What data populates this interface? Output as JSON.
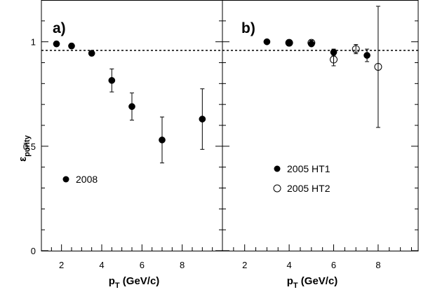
{
  "figure": {
    "y_axis_title": {
      "main": "ε",
      "sub": "purity"
    },
    "x_axis_title": {
      "main": "p",
      "sub": "T",
      "unit": " (GeV/c)"
    }
  },
  "chart_data": [
    {
      "type": "scatter",
      "panel_label": "a)",
      "x_ticks": [
        "2",
        "4",
        "6",
        "8"
      ],
      "y_ticks": [
        "0",
        "0.5",
        "1"
      ],
      "xlim": [
        1.0,
        10.0
      ],
      "ylim": [
        0,
        1.2
      ],
      "reference_line": 1.0,
      "legend_placement": "bottom-left",
      "series": [
        {
          "name": "2008",
          "marker": "filled-circle",
          "points": [
            {
              "x": 1.75,
              "y": 0.99,
              "err": 0.012
            },
            {
              "x": 2.5,
              "y": 0.98,
              "err": 0.012
            },
            {
              "x": 3.5,
              "y": 0.945,
              "err": 0.012
            },
            {
              "x": 4.5,
              "y": 0.815,
              "err": 0.055
            },
            {
              "x": 5.5,
              "y": 0.69,
              "err": 0.065
            },
            {
              "x": 7.0,
              "y": 0.53,
              "err": 0.11
            },
            {
              "x": 9.0,
              "y": 0.63,
              "err": 0.145
            }
          ]
        }
      ]
    },
    {
      "type": "scatter",
      "panel_label": "b)",
      "x_ticks": [
        "2",
        "4",
        "6",
        "8"
      ],
      "y_ticks": [],
      "xlim": [
        1.0,
        9.8
      ],
      "ylim": [
        0,
        1.2
      ],
      "reference_line": 1.0,
      "legend_placement": "center-left",
      "series": [
        {
          "name": "2005 HT1",
          "marker": "filled-circle",
          "points": [
            {
              "x": 3.0,
              "y": 1.0,
              "err": 0.008
            },
            {
              "x": 4.0,
              "y": 0.995,
              "err": 0.008
            },
            {
              "x": 5.0,
              "y": 0.99,
              "err": 0.01
            },
            {
              "x": 6.0,
              "y": 0.95,
              "err": 0.015
            },
            {
              "x": 7.5,
              "y": 0.935,
              "err": 0.03
            }
          ]
        },
        {
          "name": "2005 HT2",
          "marker": "open-circle",
          "points": [
            {
              "x": 4.0,
              "y": 0.995,
              "err": 0.01
            },
            {
              "x": 5.0,
              "y": 0.995,
              "err": 0.012
            },
            {
              "x": 6.0,
              "y": 0.915,
              "err": 0.03
            },
            {
              "x": 7.0,
              "y": 0.965,
              "err": 0.022
            },
            {
              "x": 8.0,
              "y": 0.88,
              "err": 0.29
            }
          ]
        }
      ]
    }
  ]
}
